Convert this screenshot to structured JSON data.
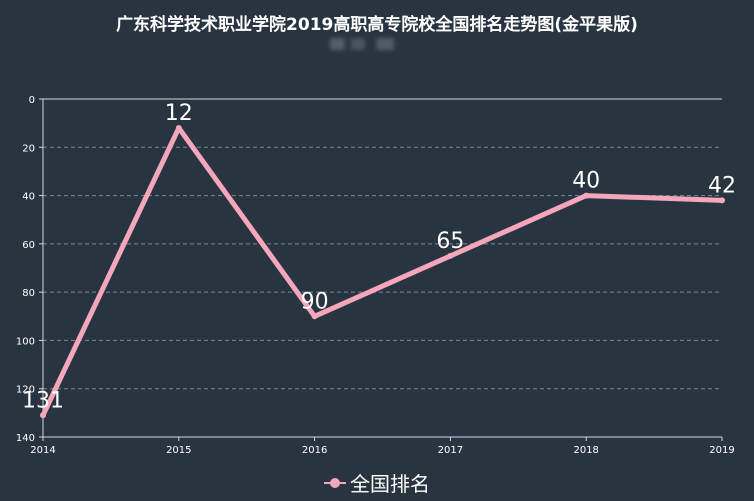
{
  "title": "广东科学技术职业学院2019高职高专院校全国排名走势图(金平果版)",
  "colors": {
    "background": "#293441",
    "line": "#f4a6bb",
    "axis": "#cfd6de",
    "grid": "#7d8794",
    "text": "#ffffff"
  },
  "chart_data": {
    "type": "line",
    "title": "广东科学技术职业学院2019高职高专院校全国排名走势图(金平果版)",
    "categories": [
      "2014",
      "2015",
      "2016",
      "2017",
      "2018",
      "2019"
    ],
    "series": [
      {
        "name": "全国排名",
        "values": [
          131,
          12,
          90,
          65,
          40,
          42
        ]
      }
    ],
    "ylim": [
      0,
      140
    ],
    "y_inverted": true,
    "yticks": [
      0,
      20,
      40,
      60,
      80,
      100,
      120,
      140
    ],
    "grid": true,
    "legend": "bottom"
  }
}
